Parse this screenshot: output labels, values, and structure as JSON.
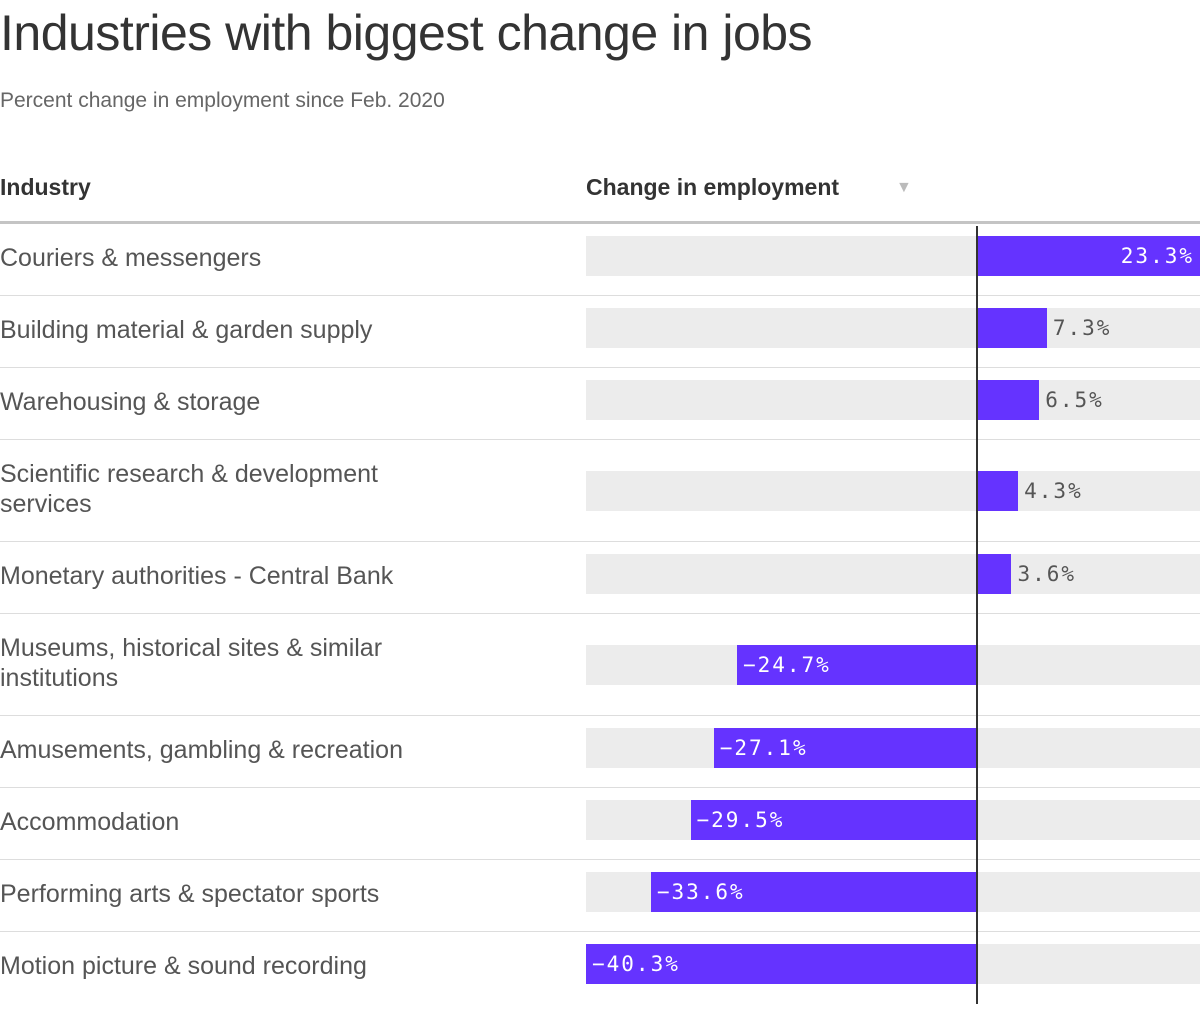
{
  "title": "Industries with biggest change in jobs",
  "subtitle": "Percent change in employment since Feb. 2020",
  "table": {
    "industry_header": "Industry",
    "change_header": "Change in employment",
    "sort_icon": "triangle-down-icon"
  },
  "colors": {
    "bar": "#6533ff",
    "track": "#ececec",
    "positive_label_outside": "#555555",
    "label_inside": "#ffffff"
  },
  "chart_data": {
    "type": "bar",
    "orientation": "horizontal",
    "title": "Industries with biggest change in jobs",
    "subtitle": "Percent change in employment since Feb. 2020",
    "xlabel": "Change in employment",
    "ylabel": "Industry",
    "xlim": [
      -40.3,
      23.3
    ],
    "categories": [
      "Couriers & messengers",
      "Building material & garden supply",
      "Warehousing & storage",
      "Scientific research & development services",
      "Monetary authorities - Central Bank",
      "Museums, historical sites & similar institutions",
      "Amusements, gambling & recreation",
      "Accommodation",
      "Performing arts & spectator sports",
      "Motion picture & sound recording"
    ],
    "values": [
      23.3,
      7.3,
      6.5,
      4.3,
      3.6,
      -24.7,
      -27.1,
      -29.5,
      -33.6,
      -40.3
    ],
    "value_labels": [
      "23.3%",
      "7.3%",
      "6.5%",
      "4.3%",
      "3.6%",
      "−24.7%",
      "−27.1%",
      "−29.5%",
      "−33.6%",
      "−40.3%"
    ],
    "grid": false,
    "legend": "none"
  }
}
